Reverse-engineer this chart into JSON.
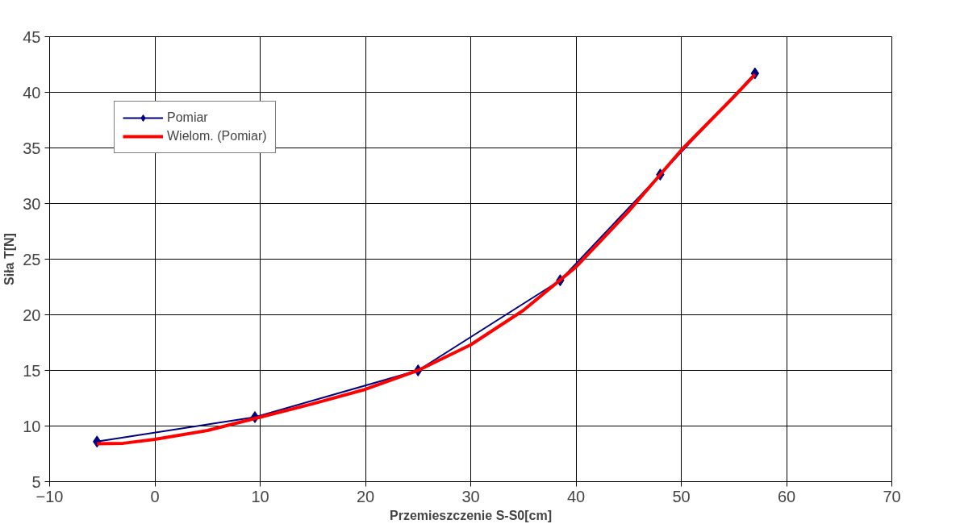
{
  "chart_data": {
    "type": "line",
    "xlabel": "Przemieszczenie S-S0[cm]",
    "ylabel": "Siła T[N]",
    "xlim": [
      -10,
      70
    ],
    "xticks": [
      -10,
      0,
      10,
      20,
      30,
      40,
      50,
      60,
      70
    ],
    "ylim": [
      5,
      45
    ],
    "yticks": [
      5,
      10,
      15,
      20,
      25,
      30,
      35,
      40,
      45
    ],
    "grid": true,
    "legend": "top left",
    "series": [
      {
        "name": "Pomiar",
        "color": "#000080",
        "marker": "diamond",
        "line_style": "solid",
        "x": [
          -5.5,
          9.5,
          25,
          38.5,
          48,
          57
        ],
        "values": [
          8.6,
          10.8,
          15.0,
          23.1,
          32.6,
          41.7
        ]
      },
      {
        "name": "Wielom. (Pomiar)",
        "color": "#ff0000",
        "marker": "none",
        "line_style": "solid",
        "x": [
          -5.5,
          -3,
          0,
          5,
          10,
          15,
          20,
          25,
          30,
          35,
          40,
          45,
          50,
          55,
          57
        ],
        "values": [
          8.4,
          8.45,
          8.8,
          9.6,
          10.8,
          12.0,
          13.3,
          15.0,
          17.3,
          20.4,
          24.3,
          29.3,
          34.8,
          39.6,
          41.6
        ]
      }
    ]
  }
}
